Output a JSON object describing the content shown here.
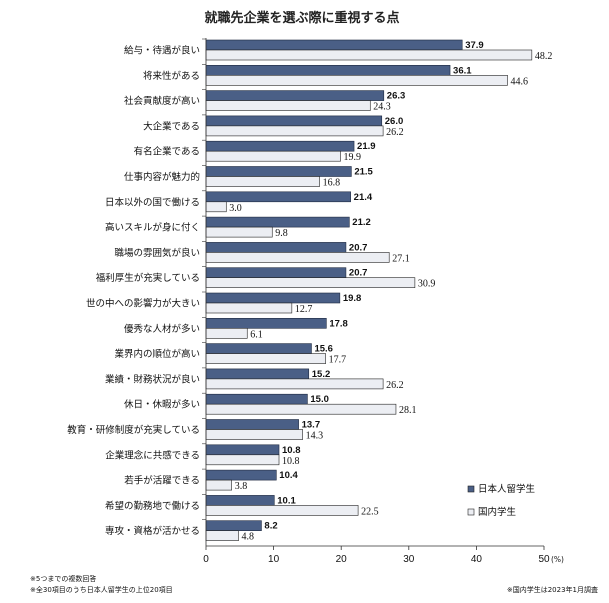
{
  "chart_data": {
    "type": "bar",
    "orientation": "horizontal",
    "title": "就職先企業を選ぶ際に重視する点",
    "unit": "(%)",
    "xlim": [
      0,
      50
    ],
    "xticks": [
      "0",
      "10",
      "20",
      "30",
      "40",
      "50"
    ],
    "grid": false,
    "legend_position": "right",
    "categories": [
      "給与・待遇が良い",
      "将来性がある",
      "社会貢献度が高い",
      "大企業である",
      "有名企業である",
      "仕事内容が魅力的",
      "日本以外の国で働ける",
      "高いスキルが身に付く",
      "職場の雰囲気が良い",
      "福利厚生が充実している",
      "世の中への影響力が大きい",
      "優秀な人材が多い",
      "業界内の順位が高い",
      "業績・財務状況が良い",
      "休日・休暇が多い",
      "教育・研修制度が充実している",
      "企業理念に共感できる",
      "若手が活躍できる",
      "希望の勤務地で働ける",
      "専攻・資格が活かせる"
    ],
    "series": [
      {
        "name": "日本人留学生",
        "color": "#4a5f86",
        "values": [
          37.9,
          36.1,
          26.3,
          26.0,
          21.9,
          21.5,
          21.4,
          21.2,
          20.7,
          20.7,
          19.8,
          17.8,
          15.6,
          15.2,
          15.0,
          13.7,
          10.8,
          10.4,
          10.1,
          8.2
        ],
        "labels": [
          "37.9",
          "36.1",
          "26.3",
          "26.0",
          "21.9",
          "21.5",
          "21.4",
          "21.2",
          "20.7",
          "20.7",
          "19.8",
          "17.8",
          "15.6",
          "15.2",
          "15.0",
          "13.7",
          "10.8",
          "10.4",
          "10.1",
          "8.2"
        ]
      },
      {
        "name": "国内学生",
        "color": "#eceef3",
        "values": [
          48.2,
          44.6,
          24.3,
          26.2,
          19.9,
          16.8,
          3.0,
          9.8,
          27.1,
          30.9,
          12.7,
          6.1,
          17.7,
          26.2,
          28.1,
          14.3,
          10.8,
          3.8,
          22.5,
          4.8
        ],
        "labels": [
          "48.2",
          "44.6",
          "24.3",
          "26.2",
          "19.9",
          "16.8",
          "3.0",
          "9.8",
          "27.1",
          "30.9",
          "12.7",
          "6.1",
          "17.7",
          "26.2",
          "28.1",
          "14.3",
          "10.8",
          "3.8",
          "22.5",
          "4.8"
        ]
      }
    ],
    "notes": {
      "left": [
        "※5つまでの複数回答",
        "※全30項目のうち日本人留学生の上位20項目"
      ],
      "right": "※国内学生は2023年1月調査"
    }
  }
}
